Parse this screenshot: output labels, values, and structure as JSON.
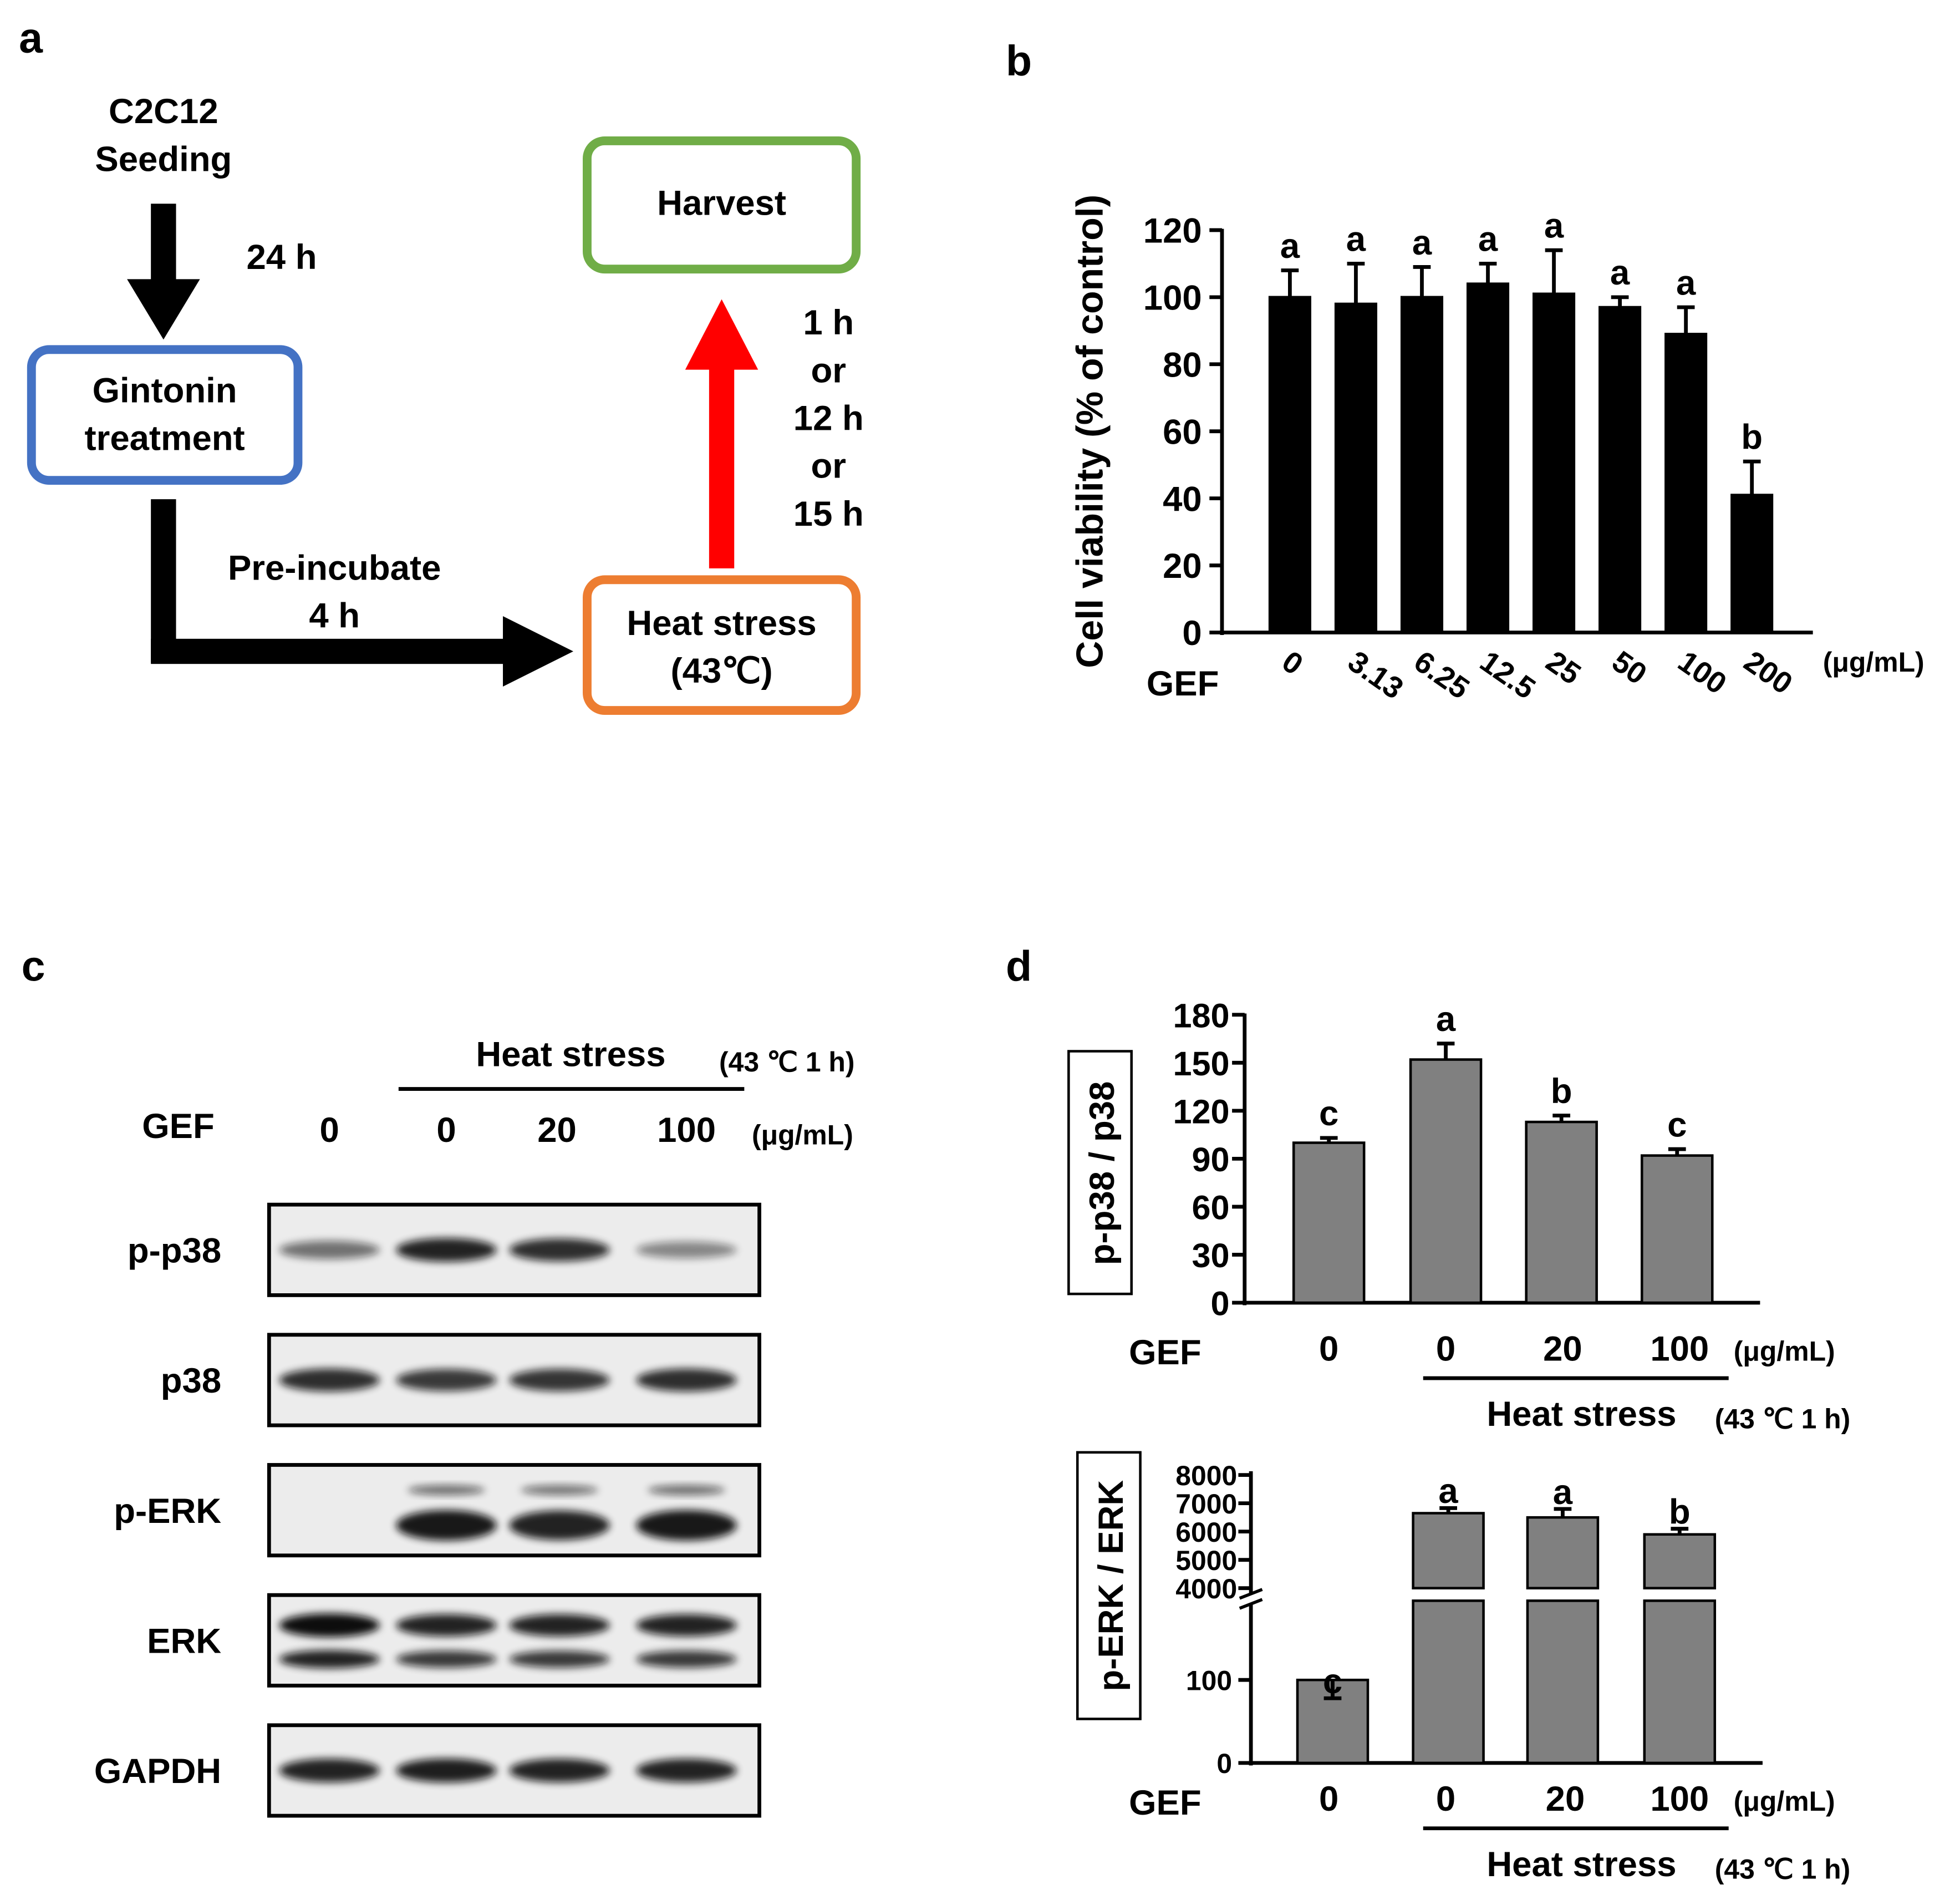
{
  "panel_a": {
    "label": "a",
    "seeding_line1": "C2C12",
    "seeding_line2": "Seeding",
    "step1_time": "24 h",
    "treatment_line1": "Gintonin",
    "treatment_line2": "treatment",
    "preincubate_line1": "Pre-incubate",
    "preincubate_line2": "4 h",
    "heat_line1": "Heat stress",
    "heat_line2": "(43℃)",
    "harvest": "Harvest",
    "time_options": [
      "1 h",
      "or",
      "12 h",
      "or",
      "15 h"
    ],
    "colors": {
      "treatment_box": "#4472C4",
      "heat_box": "#ED7D31",
      "harvest_box": "#70AD47",
      "harvest_arrow": "#FF0000"
    }
  },
  "panel_b": {
    "label": "b",
    "group_label": "GEF",
    "unit": "(μg/mL)"
  },
  "panel_c": {
    "label": "c",
    "heat_stress": "Heat stress",
    "heat_condition": "(43 ℃ 1 h)",
    "gef_label": "GEF",
    "doses": [
      "0",
      "0",
      "20",
      "100"
    ],
    "unit": "(μg/mL)",
    "blots": [
      {
        "name": "p-p38",
        "bands": [
          0.55,
          0.9,
          0.85,
          0.45
        ]
      },
      {
        "name": "p38",
        "bands": [
          0.85,
          0.8,
          0.82,
          0.85
        ]
      },
      {
        "name": "p-ERK",
        "bands": [
          0.0,
          0.95,
          0.9,
          0.95
        ]
      },
      {
        "name": "ERK",
        "bands": [
          0.9,
          0.8,
          0.8,
          0.8
        ]
      },
      {
        "name": "GAPDH",
        "bands": [
          0.9,
          0.92,
          0.9,
          0.9
        ]
      }
    ]
  },
  "panel_d": {
    "label": "d",
    "gef_label": "GEF",
    "unit": "(μg/mL)",
    "heat_stress": "Heat stress",
    "heat_condition": "(43 ℃ 1 h)"
  },
  "chart_data": [
    {
      "type": "bar",
      "panel": "b",
      "categories": [
        "0",
        "3.13",
        "6.25",
        "12.5",
        "25",
        "50",
        "100",
        "200"
      ],
      "values": [
        100,
        98,
        100,
        104,
        101,
        97,
        89,
        41
      ],
      "errors": [
        8,
        12,
        9,
        6,
        13,
        3,
        8,
        10
      ],
      "letters": [
        "a",
        "a",
        "a",
        "a",
        "a",
        "a",
        "a",
        "b"
      ],
      "ylabel": "Cell viability (% of control)",
      "ylim": [
        0,
        120
      ],
      "yticks": [
        0,
        20,
        40,
        60,
        80,
        100,
        120
      ],
      "bar_color": "#000000"
    },
    {
      "type": "bar",
      "panel": "d-top",
      "categories": [
        "0",
        "0",
        "20",
        "100"
      ],
      "values": [
        100,
        152,
        113,
        92
      ],
      "errors": [
        3,
        10,
        4,
        4
      ],
      "letters": [
        "c",
        "a",
        "b",
        "c"
      ],
      "ylabel": "p-p38 / p38",
      "ylim": [
        0,
        180
      ],
      "yticks": [
        0,
        30,
        60,
        90,
        120,
        150,
        180
      ],
      "bar_color": "#808080"
    },
    {
      "type": "bar",
      "panel": "d-bottom",
      "categories": [
        "0",
        "0",
        "20",
        "100"
      ],
      "values": [
        100,
        6650,
        6500,
        5900
      ],
      "errors": [
        8,
        180,
        300,
        200
      ],
      "letters": [
        "c",
        "a",
        "a",
        "b"
      ],
      "ylabel": "p-ERK / ERK",
      "axis_break": true,
      "lower_ticks": [
        0,
        100
      ],
      "upper_ticks": [
        4000,
        5000,
        6000,
        7000,
        8000
      ],
      "bar_color": "#808080"
    }
  ]
}
